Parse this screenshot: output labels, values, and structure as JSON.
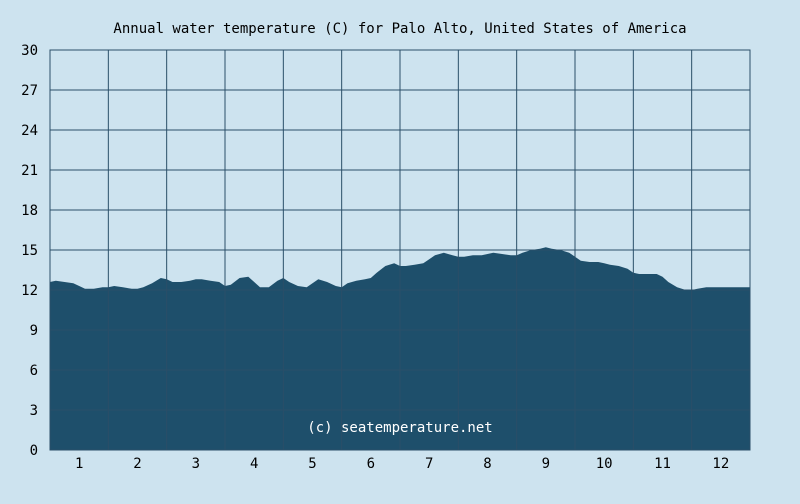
{
  "chart_data": {
    "type": "area",
    "title": "Annual water temperature (C) for Palo Alto, United States of America",
    "watermark": "(c) seatemperature.net",
    "xlabel": "",
    "ylabel": "",
    "x_ticks": [
      "1",
      "2",
      "3",
      "4",
      "5",
      "6",
      "7",
      "8",
      "9",
      "10",
      "11",
      "12"
    ],
    "y_ticks": [
      "0",
      "3",
      "6",
      "9",
      "12",
      "15",
      "18",
      "21",
      "24",
      "27",
      "30"
    ],
    "ylim": [
      0,
      30
    ],
    "xlim": [
      0.5,
      12.5
    ],
    "grid": true,
    "fill_color": "#1e4f6b",
    "background_color": "#cde3ef",
    "grid_color": "#2a4f68",
    "series": [
      {
        "values_x": [
          0.5,
          0.6,
          0.75,
          0.9,
          1.0,
          1.1,
          1.25,
          1.4,
          1.5,
          1.6,
          1.75,
          1.9,
          2.0,
          2.1,
          2.25,
          2.4,
          2.5,
          2.6,
          2.75,
          2.9,
          3.0,
          3.1,
          3.25,
          3.4,
          3.5,
          3.6,
          3.75,
          3.9,
          4.0,
          4.1,
          4.25,
          4.4,
          4.5,
          4.6,
          4.75,
          4.9,
          5.0,
          5.1,
          5.25,
          5.4,
          5.5,
          5.6,
          5.75,
          5.9,
          6.0,
          6.1,
          6.25,
          6.4,
          6.5,
          6.6,
          6.75,
          6.9,
          7.0,
          7.1,
          7.25,
          7.4,
          7.5,
          7.6,
          7.75,
          7.9,
          8.0,
          8.1,
          8.25,
          8.4,
          8.5,
          8.6,
          8.75,
          8.9,
          9.0,
          9.1,
          9.25,
          9.4,
          9.5,
          9.6,
          9.75,
          9.9,
          10.0,
          10.1,
          10.25,
          10.4,
          10.5,
          10.6,
          10.75,
          10.9,
          11.0,
          11.1,
          11.25,
          11.4,
          11.5,
          11.6,
          11.75,
          11.9,
          12.0,
          12.1,
          12.25,
          12.4,
          12.5
        ],
        "values_y": [
          12.6,
          12.7,
          12.6,
          12.5,
          12.3,
          12.1,
          12.1,
          12.2,
          12.2,
          12.3,
          12.2,
          12.1,
          12.1,
          12.2,
          12.5,
          12.9,
          12.8,
          12.6,
          12.6,
          12.7,
          12.8,
          12.8,
          12.7,
          12.6,
          12.3,
          12.4,
          12.9,
          13.0,
          12.6,
          12.2,
          12.2,
          12.7,
          12.9,
          12.6,
          12.3,
          12.2,
          12.5,
          12.8,
          12.6,
          12.3,
          12.2,
          12.5,
          12.7,
          12.8,
          12.9,
          13.3,
          13.8,
          14.0,
          13.8,
          13.8,
          13.9,
          14.0,
          14.3,
          14.6,
          14.8,
          14.6,
          14.5,
          14.5,
          14.6,
          14.6,
          14.7,
          14.8,
          14.7,
          14.6,
          14.6,
          14.8,
          15.0,
          15.1,
          15.2,
          15.1,
          15.0,
          14.8,
          14.5,
          14.2,
          14.1,
          14.1,
          14.0,
          13.9,
          13.8,
          13.6,
          13.3,
          13.2,
          13.2,
          13.2,
          13.0,
          12.6,
          12.2,
          12.0,
          12.0,
          12.1,
          12.2,
          12.2,
          12.2,
          12.2,
          12.2,
          12.2,
          12.2
        ]
      }
    ]
  }
}
